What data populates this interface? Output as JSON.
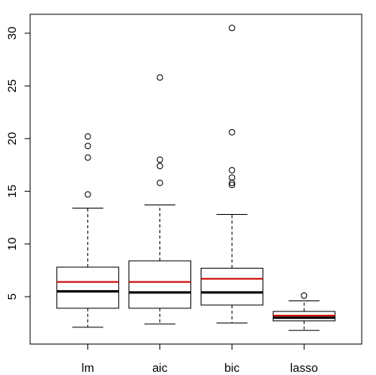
{
  "chart_data": {
    "type": "boxplot",
    "categories": [
      "lm",
      "aic",
      "bic",
      "lasso"
    ],
    "ylim": [
      0.5,
      31.8
    ],
    "yticks": [
      5,
      10,
      15,
      20,
      25,
      30
    ],
    "grid": false,
    "colors": {
      "box": "#000000",
      "median": "#000000",
      "mean": "#cc0000"
    },
    "boxes": [
      {
        "label": "lm",
        "whisker_low": 2.1,
        "q1": 3.9,
        "median": 5.5,
        "mean": 6.4,
        "q3": 7.8,
        "whisker_high": 13.4,
        "outliers": [
          14.7,
          18.2,
          19.3,
          20.2
        ]
      },
      {
        "label": "aic",
        "whisker_low": 2.4,
        "q1": 3.9,
        "median": 5.4,
        "mean": 6.4,
        "q3": 8.4,
        "whisker_high": 13.7,
        "outliers": [
          15.8,
          17.4,
          18.0,
          25.8
        ]
      },
      {
        "label": "bic",
        "whisker_low": 2.5,
        "q1": 4.2,
        "median": 5.4,
        "mean": 6.7,
        "q3": 7.7,
        "whisker_high": 12.8,
        "outliers": [
          15.6,
          15.8,
          16.3,
          17.0,
          20.6,
          30.5
        ]
      },
      {
        "label": "lasso",
        "whisker_low": 1.8,
        "q1": 2.7,
        "median": 3.0,
        "mean": 3.2,
        "q3": 3.6,
        "whisker_high": 4.6,
        "outliers": [
          5.1
        ]
      }
    ]
  }
}
